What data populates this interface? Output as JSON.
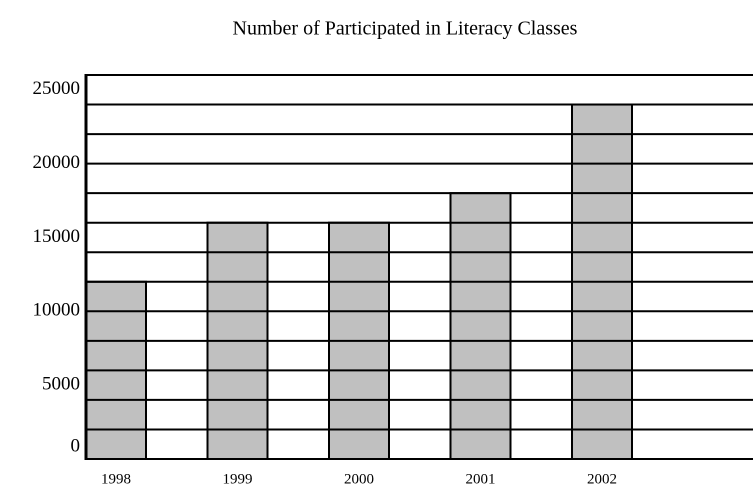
{
  "chart_data": {
    "type": "bar",
    "title": "Number of Participated in Literacy Classes",
    "categories": [
      "1998",
      "1999",
      "2000",
      "2001",
      "2002"
    ],
    "values": [
      12000,
      16000,
      16000,
      18000,
      24000
    ],
    "color": "#c0c0c0",
    "ylim": [
      0,
      26000
    ],
    "yticks": [
      0,
      5000,
      10000,
      15000,
      20000,
      25000
    ],
    "grid": true
  }
}
